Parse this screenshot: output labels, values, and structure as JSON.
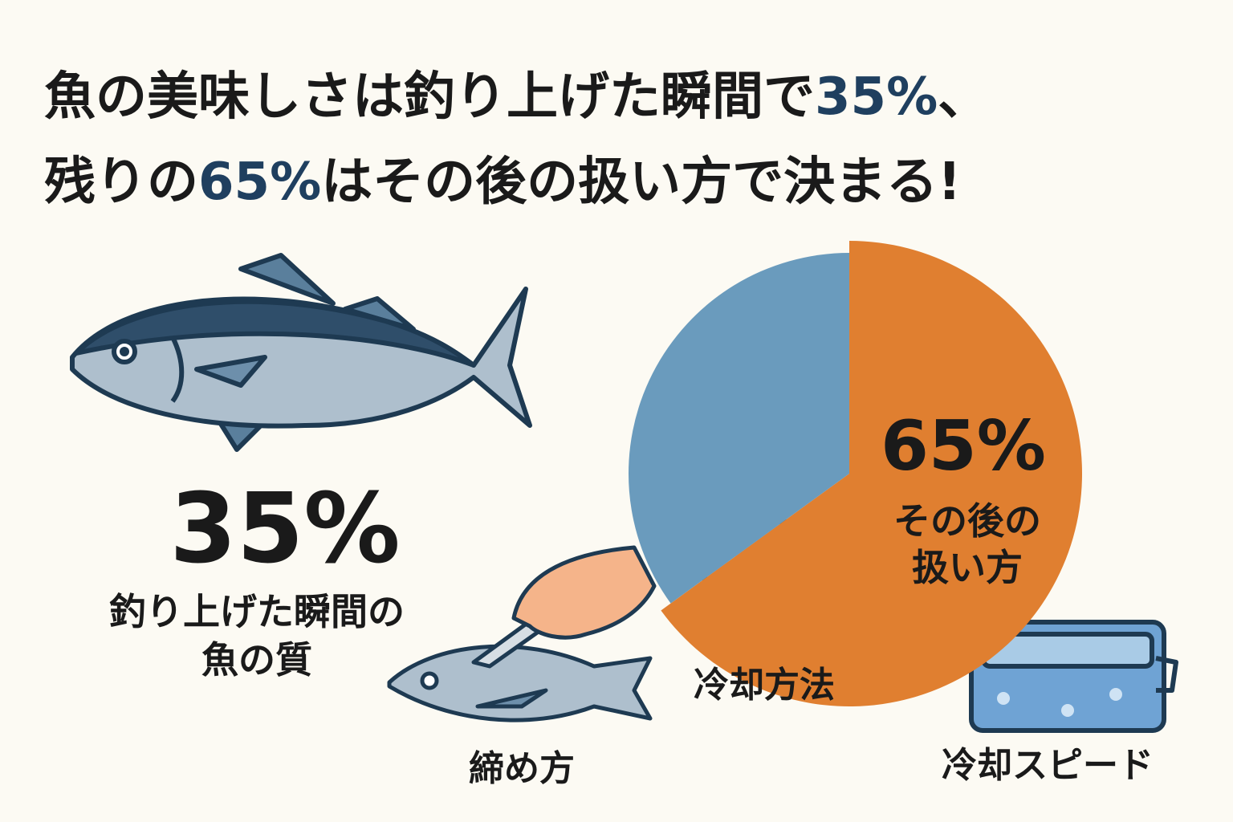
{
  "chart_data": {
    "type": "pie",
    "title_lines": [
      [
        {
          "text": "魚の美味しさは釣り上げた瞬間で",
          "highlight": false
        },
        {
          "text": "35%",
          "highlight": true
        },
        {
          "text": "、",
          "highlight": false
        }
      ],
      [
        {
          "text": "残りの",
          "highlight": false
        },
        {
          "text": "65%",
          "highlight": true
        },
        {
          "text": "はその後の扱い方で決まる!",
          "highlight": false
        }
      ]
    ],
    "categories": [
      [
        "釣り上げた瞬間の",
        "魚の質"
      ],
      [
        "その後の",
        "扱い方"
      ]
    ],
    "values": [
      35,
      65
    ],
    "value_labels": [
      "35%",
      "65%"
    ],
    "colors": [
      "#6a9bbd",
      "#e07f30"
    ],
    "highlight_color": "#1f3f5f",
    "annotations": [
      "締め方",
      "冷却方法",
      "冷却スピード"
    ]
  }
}
